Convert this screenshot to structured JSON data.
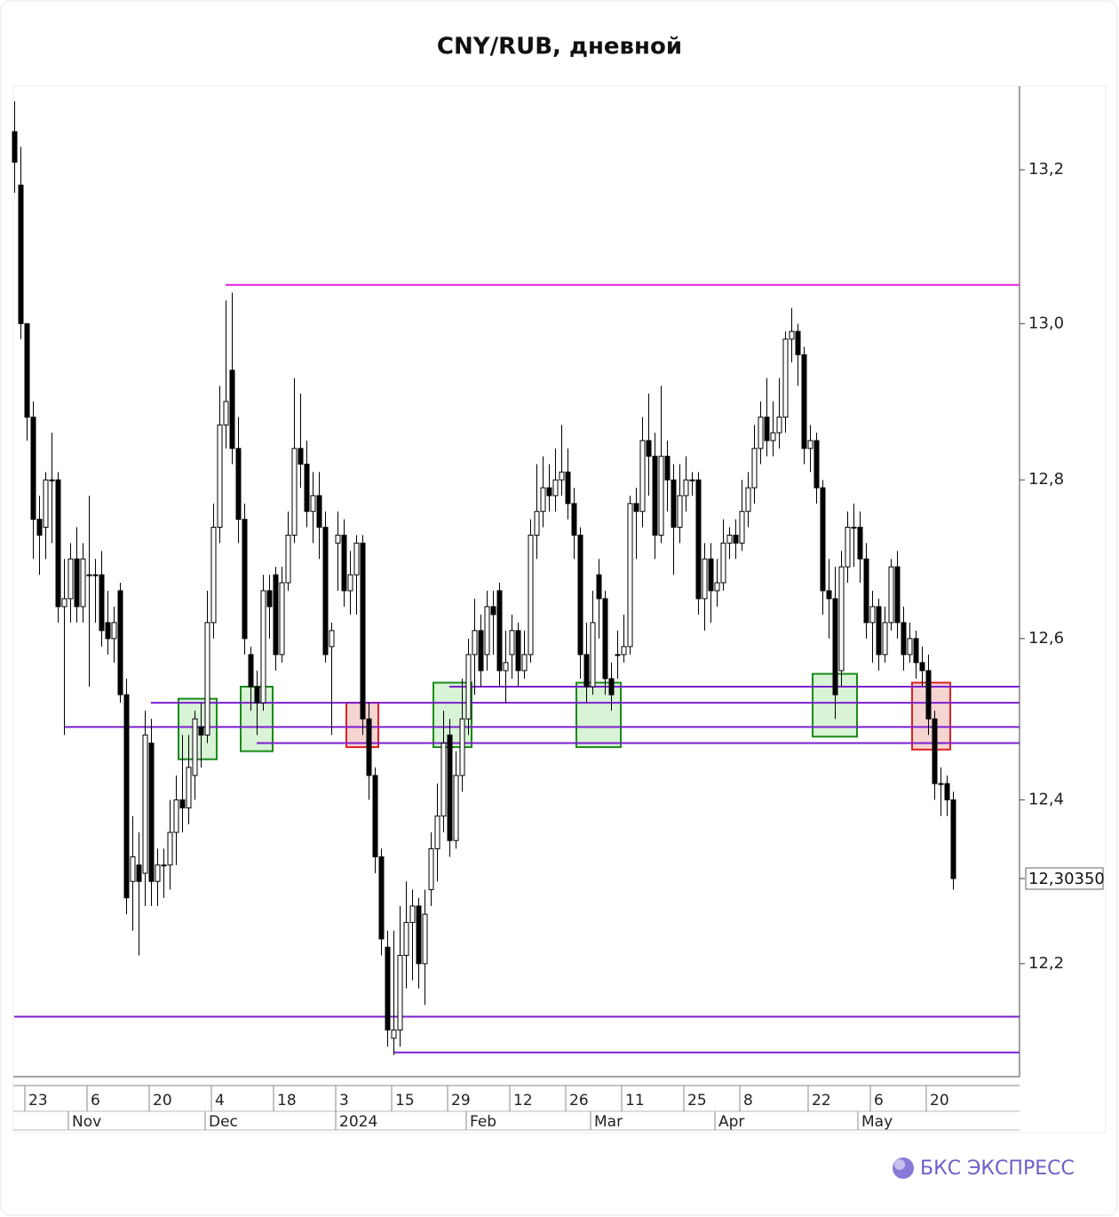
{
  "chart_data": {
    "type": "candlestick",
    "title": "CNY/RUB, дневной",
    "log_scale": true,
    "ylim": [
      12.064,
      13.31
    ],
    "yticks": [
      {
        "value": 12.2,
        "label": "12,2"
      },
      {
        "value": 12.4,
        "label": "12,4"
      },
      {
        "value": 12.6,
        "label": "12,6"
      },
      {
        "value": 12.8,
        "label": "12,8"
      },
      {
        "value": 13.0,
        "label": "13,0"
      },
      {
        "value": 13.2,
        "label": "13,2"
      }
    ],
    "last_price": {
      "value": 12.3035,
      "label": "12,30350"
    },
    "up_color": "#ffffff",
    "down_color": "#000000",
    "categories": [
      null,
      null,
      "23",
      null,
      null,
      null,
      null,
      null,
      null,
      null,
      null,
      null,
      "6",
      null,
      null,
      null,
      null,
      null,
      null,
      null,
      null,
      null,
      "20",
      null,
      null,
      null,
      null,
      null,
      null,
      null,
      null,
      null,
      "4",
      null,
      null,
      null,
      null,
      null,
      null,
      null,
      null,
      null,
      "18",
      null,
      null,
      null,
      null,
      null,
      null,
      null,
      null,
      null,
      "3",
      null,
      null,
      null,
      null,
      null,
      null,
      null,
      null,
      "15",
      null,
      null,
      null,
      null,
      null,
      null,
      null,
      null,
      "29",
      null,
      null,
      null,
      null,
      null,
      null,
      null,
      null,
      null,
      "12",
      null,
      null,
      null,
      null,
      null,
      null,
      null,
      null,
      "26",
      null,
      null,
      null,
      null,
      null,
      null,
      null,
      null,
      "11",
      null,
      null,
      null,
      null,
      null,
      null,
      null,
      null,
      null,
      "25",
      null,
      null,
      null,
      null,
      null,
      null,
      null,
      null,
      "8",
      null,
      null,
      null,
      null,
      null,
      null,
      null,
      null,
      null,
      null,
      "22",
      null,
      null,
      null,
      null,
      null,
      null,
      null,
      null,
      null,
      "6",
      null,
      null,
      null,
      null,
      null,
      null,
      null,
      null,
      "20",
      null,
      null,
      null,
      null
    ],
    "months": [
      null,
      null,
      null,
      null,
      null,
      null,
      null,
      null,
      null,
      "Nov",
      null,
      null,
      null,
      null,
      null,
      null,
      null,
      null,
      null,
      null,
      null,
      null,
      null,
      null,
      null,
      null,
      null,
      null,
      null,
      null,
      null,
      "Dec",
      null,
      null,
      null,
      null,
      null,
      null,
      null,
      null,
      null,
      null,
      null,
      null,
      null,
      null,
      null,
      null,
      null,
      null,
      null,
      null,
      "2024",
      null,
      null,
      null,
      null,
      null,
      null,
      null,
      null,
      null,
      null,
      null,
      null,
      null,
      null,
      null,
      null,
      null,
      null,
      null,
      null,
      "Feb",
      null,
      null,
      null,
      null,
      null,
      null,
      null,
      null,
      null,
      null,
      null,
      null,
      null,
      null,
      null,
      null,
      null,
      null,
      null,
      "Mar",
      null,
      null,
      null,
      null,
      null,
      null,
      null,
      null,
      null,
      null,
      null,
      null,
      null,
      null,
      null,
      null,
      null,
      null,
      null,
      "Apr",
      null,
      null,
      null,
      null,
      null,
      null,
      null,
      null,
      null,
      null,
      null,
      null,
      null,
      null,
      null,
      null,
      null,
      null,
      null,
      null,
      null,
      null,
      "May",
      null,
      null,
      null,
      null,
      null,
      null,
      null,
      null,
      null,
      null,
      null,
      null,
      null,
      null,
      null
    ],
    "candles": [
      [
        13.25,
        13.29,
        13.17,
        13.21
      ],
      [
        13.18,
        13.23,
        12.98,
        13.0
      ],
      [
        13.0,
        13.0,
        12.85,
        12.88
      ],
      [
        12.88,
        12.9,
        12.7,
        12.75
      ],
      [
        12.75,
        12.78,
        12.68,
        12.73
      ],
      [
        12.74,
        12.81,
        12.7,
        12.8
      ],
      [
        12.8,
        12.86,
        12.72,
        12.8
      ],
      [
        12.8,
        12.81,
        12.62,
        12.64
      ],
      [
        12.64,
        12.7,
        12.48,
        12.65
      ],
      [
        12.65,
        12.72,
        12.62,
        12.7
      ],
      [
        12.7,
        12.74,
        12.62,
        12.64
      ],
      [
        12.64,
        12.72,
        12.62,
        12.7
      ],
      [
        12.68,
        12.78,
        12.54,
        12.68
      ],
      [
        12.68,
        12.7,
        12.62,
        12.68
      ],
      [
        12.68,
        12.71,
        12.59,
        12.61
      ],
      [
        12.62,
        12.66,
        12.58,
        12.6
      ],
      [
        12.6,
        12.64,
        12.57,
        12.62
      ],
      [
        12.66,
        12.67,
        12.52,
        12.53
      ],
      [
        12.53,
        12.55,
        12.26,
        12.28
      ],
      [
        12.3,
        12.38,
        12.24,
        12.33
      ],
      [
        12.32,
        12.36,
        12.21,
        12.3
      ],
      [
        12.31,
        12.51,
        12.27,
        12.48
      ],
      [
        12.47,
        12.5,
        12.27,
        12.3
      ],
      [
        12.3,
        12.34,
        12.27,
        12.32
      ],
      [
        12.32,
        12.34,
        12.28,
        12.32
      ],
      [
        12.32,
        12.4,
        12.29,
        12.36
      ],
      [
        12.36,
        12.43,
        12.32,
        12.4
      ],
      [
        12.4,
        12.48,
        12.36,
        12.39
      ],
      [
        12.39,
        12.48,
        12.37,
        12.44
      ],
      [
        12.43,
        12.51,
        12.4,
        12.5
      ],
      [
        12.49,
        12.52,
        12.44,
        12.48
      ],
      [
        12.48,
        12.66,
        12.47,
        12.62
      ],
      [
        12.62,
        12.77,
        12.6,
        12.74
      ],
      [
        12.74,
        12.92,
        12.72,
        12.87
      ],
      [
        12.87,
        13.03,
        12.84,
        12.9
      ],
      [
        12.94,
        13.04,
        12.82,
        12.84
      ],
      [
        12.84,
        12.88,
        12.72,
        12.75
      ],
      [
        12.75,
        12.77,
        12.58,
        12.6
      ],
      [
        12.58,
        12.59,
        12.51,
        12.54
      ],
      [
        12.54,
        12.56,
        12.48,
        12.52
      ],
      [
        12.52,
        12.68,
        12.51,
        12.66
      ],
      [
        12.66,
        12.68,
        12.6,
        12.64
      ],
      [
        12.68,
        12.69,
        12.56,
        12.58
      ],
      [
        12.58,
        12.69,
        12.57,
        12.67
      ],
      [
        12.67,
        12.76,
        12.66,
        12.73
      ],
      [
        12.73,
        12.93,
        12.72,
        12.84
      ],
      [
        12.84,
        12.91,
        12.79,
        12.82
      ],
      [
        12.82,
        12.85,
        12.74,
        12.76
      ],
      [
        12.76,
        12.81,
        12.72,
        12.78
      ],
      [
        12.78,
        12.81,
        12.7,
        12.74
      ],
      [
        12.74,
        12.76,
        12.57,
        12.58
      ],
      [
        12.59,
        12.62,
        12.48,
        12.61
      ],
      [
        12.72,
        12.76,
        12.66,
        12.73
      ],
      [
        12.73,
        12.75,
        12.64,
        12.66
      ],
      [
        12.66,
        12.71,
        12.63,
        12.68
      ],
      [
        12.68,
        12.73,
        12.63,
        12.72
      ],
      [
        12.72,
        12.73,
        12.48,
        12.5
      ],
      [
        12.5,
        12.52,
        12.4,
        12.43
      ],
      [
        12.43,
        12.44,
        12.31,
        12.33
      ],
      [
        12.33,
        12.34,
        12.21,
        12.23
      ],
      [
        12.22,
        12.24,
        12.1,
        12.12
      ],
      [
        12.11,
        12.24,
        12.09,
        12.12
      ],
      [
        12.12,
        12.27,
        12.1,
        12.21
      ],
      [
        12.21,
        12.3,
        12.17,
        12.25
      ],
      [
        12.25,
        12.29,
        12.18,
        12.27
      ],
      [
        12.27,
        12.28,
        12.17,
        12.2
      ],
      [
        12.2,
        12.29,
        12.15,
        12.26
      ],
      [
        12.29,
        12.36,
        12.27,
        12.34
      ],
      [
        12.34,
        12.42,
        12.3,
        12.38
      ],
      [
        12.38,
        12.51,
        12.36,
        12.47
      ],
      [
        12.48,
        12.5,
        12.33,
        12.35
      ],
      [
        12.35,
        12.46,
        12.34,
        12.43
      ],
      [
        12.43,
        12.55,
        12.41,
        12.5
      ],
      [
        12.5,
        12.6,
        12.48,
        12.58
      ],
      [
        12.58,
        12.65,
        12.53,
        12.61
      ],
      [
        12.61,
        12.63,
        12.54,
        12.56
      ],
      [
        12.58,
        12.66,
        12.56,
        12.64
      ],
      [
        12.64,
        12.66,
        12.58,
        12.63
      ],
      [
        12.66,
        12.67,
        12.54,
        12.56
      ],
      [
        12.56,
        12.61,
        12.52,
        12.57
      ],
      [
        12.58,
        12.63,
        12.55,
        12.61
      ],
      [
        12.61,
        12.62,
        12.54,
        12.56
      ],
      [
        12.56,
        12.61,
        12.55,
        12.58
      ],
      [
        12.58,
        12.75,
        12.57,
        12.73
      ],
      [
        12.73,
        12.82,
        12.7,
        12.76
      ],
      [
        12.76,
        12.83,
        12.74,
        12.79
      ],
      [
        12.79,
        12.82,
        12.76,
        12.78
      ],
      [
        12.78,
        12.84,
        12.76,
        12.8
      ],
      [
        12.8,
        12.87,
        12.78,
        12.81
      ],
      [
        12.81,
        12.84,
        12.75,
        12.77
      ],
      [
        12.77,
        12.79,
        12.7,
        12.73
      ],
      [
        12.73,
        12.74,
        12.55,
        12.58
      ],
      [
        12.58,
        12.62,
        12.52,
        12.54
      ],
      [
        12.54,
        12.66,
        12.53,
        12.62
      ],
      [
        12.68,
        12.7,
        12.6,
        12.65
      ],
      [
        12.65,
        12.66,
        12.53,
        12.55
      ],
      [
        12.55,
        12.57,
        12.51,
        12.53
      ],
      [
        12.58,
        12.61,
        12.55,
        12.58
      ],
      [
        12.58,
        12.63,
        12.57,
        12.59
      ],
      [
        12.59,
        12.78,
        12.58,
        12.77
      ],
      [
        12.77,
        12.79,
        12.7,
        12.76
      ],
      [
        12.76,
        12.88,
        12.74,
        12.85
      ],
      [
        12.85,
        12.91,
        12.78,
        12.83
      ],
      [
        12.83,
        12.86,
        12.7,
        12.73
      ],
      [
        12.73,
        12.92,
        12.72,
        12.83
      ],
      [
        12.83,
        12.85,
        12.76,
        12.8
      ],
      [
        12.8,
        12.82,
        12.68,
        12.74
      ],
      [
        12.74,
        12.82,
        12.72,
        12.78
      ],
      [
        12.78,
        12.83,
        12.76,
        12.8
      ],
      [
        12.8,
        12.81,
        12.78,
        12.8
      ],
      [
        12.8,
        12.81,
        12.63,
        12.65
      ],
      [
        12.65,
        12.72,
        12.61,
        12.7
      ],
      [
        12.7,
        12.72,
        12.62,
        12.66
      ],
      [
        12.66,
        12.7,
        12.64,
        12.67
      ],
      [
        12.67,
        12.75,
        12.66,
        12.72
      ],
      [
        12.72,
        12.74,
        12.7,
        12.73
      ],
      [
        12.73,
        12.75,
        12.7,
        12.72
      ],
      [
        12.72,
        12.8,
        12.71,
        12.76
      ],
      [
        12.76,
        12.81,
        12.74,
        12.79
      ],
      [
        12.79,
        12.87,
        12.77,
        12.84
      ],
      [
        12.84,
        12.9,
        12.82,
        12.88
      ],
      [
        12.88,
        12.93,
        12.83,
        12.85
      ],
      [
        12.85,
        12.9,
        12.83,
        12.86
      ],
      [
        12.86,
        12.93,
        12.84,
        12.88
      ],
      [
        12.88,
        12.99,
        12.86,
        12.98
      ],
      [
        12.98,
        13.02,
        12.95,
        12.99
      ],
      [
        12.99,
        13.0,
        12.92,
        12.96
      ],
      [
        12.96,
        12.97,
        12.82,
        12.84
      ],
      [
        12.84,
        12.87,
        12.81,
        12.85
      ],
      [
        12.85,
        12.86,
        12.77,
        12.79
      ],
      [
        12.79,
        12.8,
        12.63,
        12.66
      ],
      [
        12.66,
        12.7,
        12.6,
        12.65
      ],
      [
        12.65,
        12.69,
        12.5,
        12.53
      ],
      [
        12.56,
        12.71,
        12.54,
        12.69
      ],
      [
        12.69,
        12.76,
        12.67,
        12.74
      ],
      [
        12.74,
        12.77,
        12.69,
        12.74
      ],
      [
        12.74,
        12.76,
        12.67,
        12.7
      ],
      [
        12.7,
        12.72,
        12.6,
        12.62
      ],
      [
        12.62,
        12.66,
        12.57,
        12.64
      ],
      [
        12.64,
        12.65,
        12.56,
        12.58
      ],
      [
        12.58,
        12.64,
        12.57,
        12.62
      ],
      [
        12.62,
        12.7,
        12.61,
        12.69
      ],
      [
        12.69,
        12.71,
        12.6,
        12.62
      ],
      [
        12.62,
        12.64,
        12.56,
        12.58
      ],
      [
        12.58,
        12.62,
        12.57,
        12.6
      ],
      [
        12.6,
        12.61,
        12.55,
        12.57
      ],
      [
        12.57,
        12.59,
        12.54,
        12.56
      ],
      [
        12.56,
        12.58,
        12.48,
        12.5
      ],
      [
        12.5,
        12.51,
        12.4,
        12.42
      ],
      [
        12.42,
        12.44,
        12.38,
        12.42
      ],
      [
        12.42,
        12.43,
        12.38,
        12.4
      ],
      [
        12.4,
        12.41,
        12.29,
        12.3035
      ]
    ],
    "levels": [
      {
        "value": 13.05,
        "color": "#e21be2",
        "from": 34
      },
      {
        "value": 12.54,
        "color": "#7a1fd0",
        "from": 70
      },
      {
        "value": 12.52,
        "color": "#7a1fd0",
        "from": 22
      },
      {
        "value": 12.49,
        "color": "#7a1fd0",
        "from": 8
      },
      {
        "value": 12.47,
        "color": "#7a1fd0",
        "from": 39
      },
      {
        "value": 12.136,
        "color": "#7a1fd0",
        "from": 0
      },
      {
        "value": 12.093,
        "color": "#7a1fd0",
        "from": 61
      }
    ],
    "zones": [
      {
        "from": 27,
        "to": 32,
        "low": 12.45,
        "high": 12.525,
        "color": "#1a8a1a",
        "fill": "#d8f3d6"
      },
      {
        "from": 37,
        "to": 41,
        "low": 12.46,
        "high": 12.54,
        "color": "#1a8a1a",
        "fill": "#d8f3d6"
      },
      {
        "from": 54,
        "to": 58,
        "low": 12.465,
        "high": 12.52,
        "color": "#e02020",
        "fill": "#f6d4d2"
      },
      {
        "from": 68,
        "to": 73,
        "low": 12.465,
        "high": 12.545,
        "color": "#1a8a1a",
        "fill": "#d8f3d6"
      },
      {
        "from": 91,
        "to": 97,
        "low": 12.465,
        "high": 12.545,
        "color": "#1a8a1a",
        "fill": "#d8f3d6"
      },
      {
        "from": 129,
        "to": 135,
        "low": 12.478,
        "high": 12.556,
        "color": "#1a8a1a",
        "fill": "#d8f3d6"
      },
      {
        "from": 145,
        "to": 150,
        "low": 12.462,
        "high": 12.545,
        "color": "#e02020",
        "fill": "#f6d4d2"
      }
    ]
  },
  "brand": "БКС ЭКСПРЕСС"
}
